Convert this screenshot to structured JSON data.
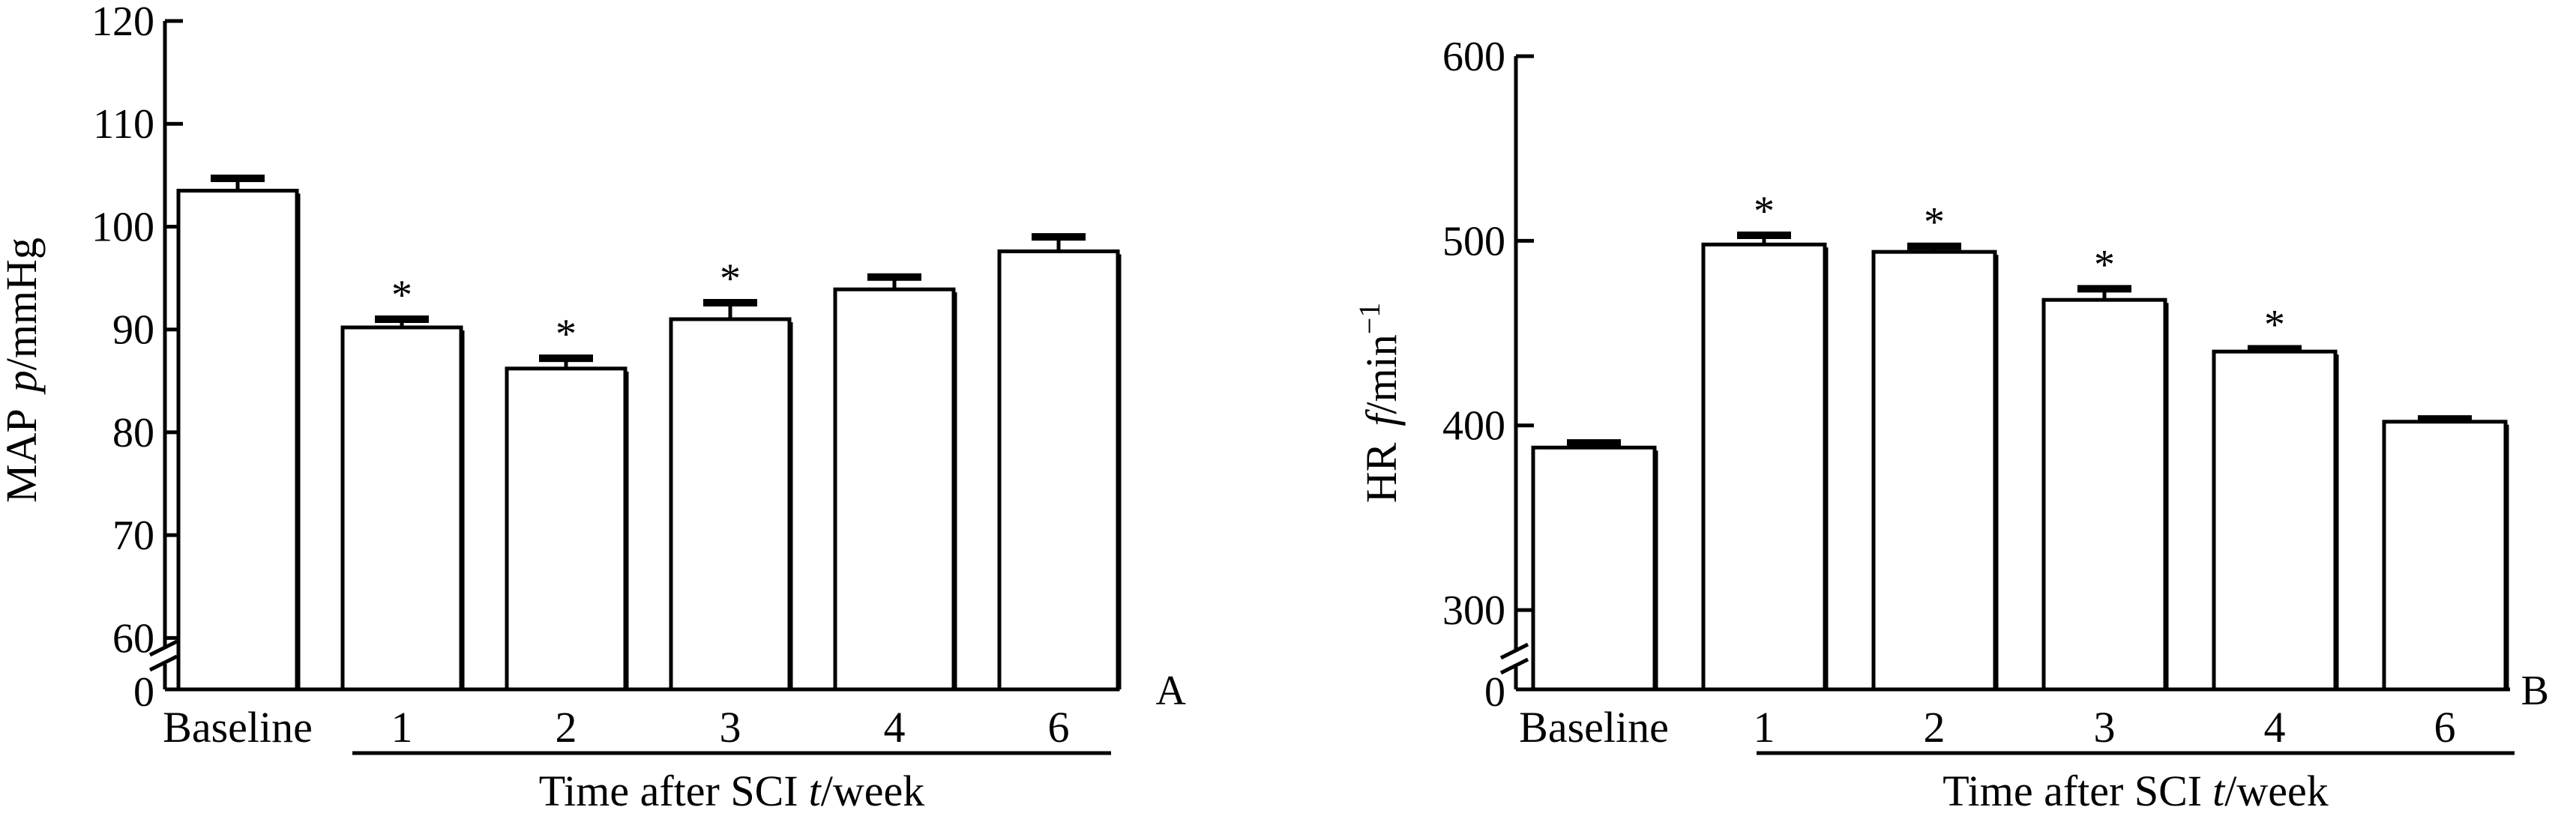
{
  "chart_data": [
    {
      "panel": "A",
      "type": "bar",
      "ylabel_main": "MAP",
      "ylabel_var": "p",
      "ylabel_unit": "/mmHg",
      "xgroup_main": "Time after SCI",
      "xgroup_var": "t",
      "xgroup_unit": "/week",
      "categories": [
        "Baseline",
        "1",
        "2",
        "3",
        "4",
        "6"
      ],
      "values": [
        103.5,
        90.2,
        86.2,
        91.0,
        93.9,
        97.6
      ],
      "errors": [
        1.2,
        0.8,
        1.0,
        1.6,
        1.2,
        1.4
      ],
      "significant": [
        false,
        true,
        true,
        true,
        false,
        false
      ],
      "sig_marker": "*",
      "ylim": [
        55,
        120
      ],
      "yticks": [
        60,
        70,
        80,
        90,
        100,
        110,
        120
      ],
      "axis_break": true,
      "break_label": "0"
    },
    {
      "panel": "B",
      "type": "bar",
      "ylabel_main": "HR",
      "ylabel_var": "f",
      "ylabel_unit": "/min",
      "ylabel_sup": "−1",
      "xgroup_main": "Time after SCI",
      "xgroup_var": "t",
      "xgroup_unit": "/week",
      "categories": [
        "Baseline",
        "1",
        "2",
        "3",
        "4",
        "6"
      ],
      "values": [
        388,
        498,
        494,
        468,
        440,
        402
      ],
      "errors": [
        2.5,
        5,
        3,
        6,
        1.5,
        1.5
      ],
      "significant": [
        false,
        true,
        true,
        true,
        true,
        false
      ],
      "sig_marker": "*",
      "ylim": [
        257,
        600
      ],
      "yticks": [
        300,
        400,
        500,
        600
      ],
      "axis_break": true,
      "break_label": "0"
    }
  ]
}
